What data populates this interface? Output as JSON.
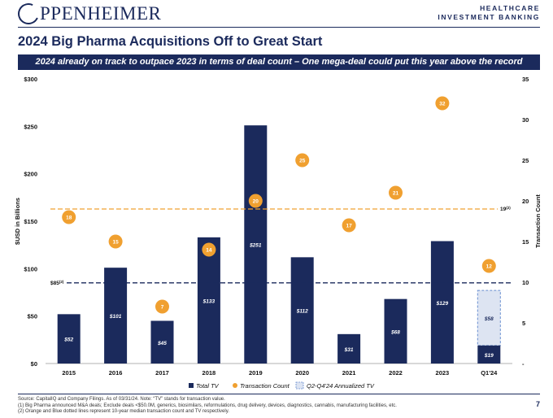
{
  "header": {
    "logo_text": "PPENHEIMER",
    "sector_line1": "HEALTHCARE",
    "sector_line2": "INVESTMENT BANKING"
  },
  "page_title": "2024 Big Pharma Acquisitions Off to Great Start",
  "banner": "2024 already on track to outpace 2023 in terms of deal count – One mega-deal could put this year above the record",
  "colors": {
    "navy": "#1b2a5c",
    "orange": "#f0a030",
    "annualized_fill": "#dde4f2"
  },
  "chart_data": {
    "type": "bar",
    "categories": [
      "2015",
      "2016",
      "2017",
      "2018",
      "2019",
      "2020",
      "2021",
      "2022",
      "2023",
      "Q1'24"
    ],
    "series": [
      {
        "name": "Total TV",
        "kind": "bar",
        "axis": "left",
        "values": [
          52,
          101,
          45,
          133,
          251,
          112,
          31,
          68,
          129,
          19
        ]
      },
      {
        "name": "Transaction Count",
        "kind": "dot",
        "axis": "right",
        "values": [
          18,
          15,
          7,
          14,
          20,
          25,
          17,
          21,
          32,
          12
        ]
      },
      {
        "name": "Q2-Q4'24 Annualized TV",
        "kind": "bar-stacked-dashed",
        "axis": "left",
        "values": [
          null,
          null,
          null,
          null,
          null,
          null,
          null,
          null,
          null,
          58
        ]
      }
    ],
    "bar_labels": [
      "$52",
      "$101",
      "$45",
      "$133",
      "$251",
      "$112",
      "$31",
      "$68",
      "$129",
      "$19"
    ],
    "annualized_label": "$58",
    "left_axis": {
      "label": "$USD in Billions",
      "range": [
        0,
        300
      ],
      "ticks": [
        "$0",
        "$50",
        "$100",
        "$150",
        "$200",
        "$250",
        "$300"
      ]
    },
    "right_axis": {
      "label": "Transaction Count",
      "range": [
        0,
        35
      ],
      "ticks": [
        "-",
        "5",
        "10",
        "15",
        "20",
        "25",
        "30",
        "35"
      ]
    },
    "reference_lines": [
      {
        "axis": "right",
        "value": 19,
        "label": "19",
        "note": "(2)",
        "color": "orange"
      },
      {
        "axis": "left",
        "value": 85,
        "label": "$85",
        "note": "(2)",
        "color": "navy"
      }
    ],
    "legend": {
      "placement": "bottom",
      "items": [
        "Total TV",
        "Transaction Count",
        "Q2-Q4'24 Annualized TV"
      ]
    }
  },
  "footnotes": {
    "source": "Source: CapitalIQ and Company Filings. As of 03/31/24. Note: “TV” stands for transaction value.",
    "note1": "(1)   Big Pharma announced M&A deals; Exclude deals <$50.0M, generics, biosimilars, reformulations, drug delivery, devices, diagnostics, cannabis, manufacturing facilities, etc.",
    "note2": "(2)   Orange and Blue dotted lines represent 10-year median transaction count and TV respectively."
  },
  "page_number": "7"
}
